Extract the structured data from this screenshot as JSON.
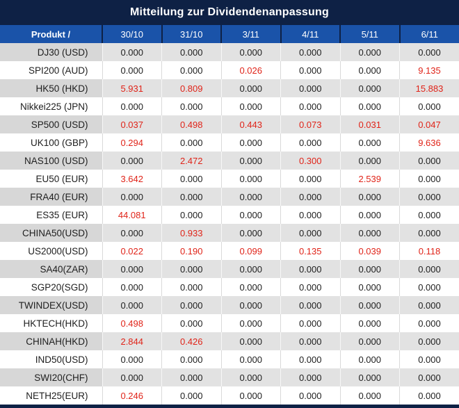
{
  "title": "Mitteilung zur Dividendenanpassung",
  "colors": {
    "title_bar_navy": "#0e2145",
    "header_blue": "#1a53a9",
    "row_gray_label": "#d7d7d7",
    "row_gray_value": "#e2e2e2",
    "negative_red": "#e02318",
    "text_dark": "#202020"
  },
  "table": {
    "product_header": "Produkt /",
    "date_headers": [
      "30/10",
      "31/10",
      "3/11",
      "4/11",
      "5/11",
      "6/11"
    ],
    "rows": [
      {
        "product": "DJ30 (USD)",
        "values": [
          "0.000",
          "0.000",
          "0.000",
          "0.000",
          "0.000",
          "0.000"
        ],
        "red": [
          false,
          false,
          false,
          false,
          false,
          false
        ]
      },
      {
        "product": "SPI200 (AUD)",
        "values": [
          "0.000",
          "0.000",
          "0.026",
          "0.000",
          "0.000",
          "9.135"
        ],
        "red": [
          false,
          false,
          true,
          false,
          false,
          true
        ]
      },
      {
        "product": "HK50 (HKD)",
        "values": [
          "5.931",
          "0.809",
          "0.000",
          "0.000",
          "0.000",
          "15.883"
        ],
        "red": [
          true,
          true,
          false,
          false,
          false,
          true
        ]
      },
      {
        "product": "Nikkei225 (JPN)",
        "values": [
          "0.000",
          "0.000",
          "0.000",
          "0.000",
          "0.000",
          "0.000"
        ],
        "red": [
          false,
          false,
          false,
          false,
          false,
          false
        ]
      },
      {
        "product": "SP500 (USD)",
        "values": [
          "0.037",
          "0.498",
          "0.443",
          "0.073",
          "0.031",
          "0.047"
        ],
        "red": [
          true,
          true,
          true,
          true,
          true,
          true
        ]
      },
      {
        "product": "UK100 (GBP)",
        "values": [
          "0.294",
          "0.000",
          "0.000",
          "0.000",
          "0.000",
          "9.636"
        ],
        "red": [
          true,
          false,
          false,
          false,
          false,
          true
        ]
      },
      {
        "product": "NAS100 (USD)",
        "values": [
          "0.000",
          "2.472",
          "0.000",
          "0.300",
          "0.000",
          "0.000"
        ],
        "red": [
          false,
          true,
          false,
          true,
          false,
          false
        ]
      },
      {
        "product": "EU50 (EUR)",
        "values": [
          "3.642",
          "0.000",
          "0.000",
          "0.000",
          "2.539",
          "0.000"
        ],
        "red": [
          true,
          false,
          false,
          false,
          true,
          false
        ]
      },
      {
        "product": "FRA40 (EUR)",
        "values": [
          "0.000",
          "0.000",
          "0.000",
          "0.000",
          "0.000",
          "0.000"
        ],
        "red": [
          false,
          false,
          false,
          false,
          false,
          false
        ]
      },
      {
        "product": "ES35 (EUR)",
        "values": [
          "44.081",
          "0.000",
          "0.000",
          "0.000",
          "0.000",
          "0.000"
        ],
        "red": [
          true,
          false,
          false,
          false,
          false,
          false
        ]
      },
      {
        "product": "CHINA50(USD)",
        "values": [
          "0.000",
          "0.933",
          "0.000",
          "0.000",
          "0.000",
          "0.000"
        ],
        "red": [
          false,
          true,
          false,
          false,
          false,
          false
        ]
      },
      {
        "product": "US2000(USD)",
        "values": [
          "0.022",
          "0.190",
          "0.099",
          "0.135",
          "0.039",
          "0.118"
        ],
        "red": [
          true,
          true,
          true,
          true,
          true,
          true
        ]
      },
      {
        "product": "SA40(ZAR)",
        "values": [
          "0.000",
          "0.000",
          "0.000",
          "0.000",
          "0.000",
          "0.000"
        ],
        "red": [
          false,
          false,
          false,
          false,
          false,
          false
        ]
      },
      {
        "product": "SGP20(SGD)",
        "values": [
          "0.000",
          "0.000",
          "0.000",
          "0.000",
          "0.000",
          "0.000"
        ],
        "red": [
          false,
          false,
          false,
          false,
          false,
          false
        ]
      },
      {
        "product": "TWINDEX(USD)",
        "values": [
          "0.000",
          "0.000",
          "0.000",
          "0.000",
          "0.000",
          "0.000"
        ],
        "red": [
          false,
          false,
          false,
          false,
          false,
          false
        ]
      },
      {
        "product": "HKTECH(HKD)",
        "values": [
          "0.498",
          "0.000",
          "0.000",
          "0.000",
          "0.000",
          "0.000"
        ],
        "red": [
          true,
          false,
          false,
          false,
          false,
          false
        ]
      },
      {
        "product": "CHINAH(HKD)",
        "values": [
          "2.844",
          "0.426",
          "0.000",
          "0.000",
          "0.000",
          "0.000"
        ],
        "red": [
          true,
          true,
          false,
          false,
          false,
          false
        ]
      },
      {
        "product": "IND50(USD)",
        "values": [
          "0.000",
          "0.000",
          "0.000",
          "0.000",
          "0.000",
          "0.000"
        ],
        "red": [
          false,
          false,
          false,
          false,
          false,
          false
        ]
      },
      {
        "product": "SWI20(CHF)",
        "values": [
          "0.000",
          "0.000",
          "0.000",
          "0.000",
          "0.000",
          "0.000"
        ],
        "red": [
          false,
          false,
          false,
          false,
          false,
          false
        ]
      },
      {
        "product": "NETH25(EUR)",
        "values": [
          "0.246",
          "0.000",
          "0.000",
          "0.000",
          "0.000",
          "0.000"
        ],
        "red": [
          true,
          false,
          false,
          false,
          false,
          false
        ]
      }
    ]
  }
}
